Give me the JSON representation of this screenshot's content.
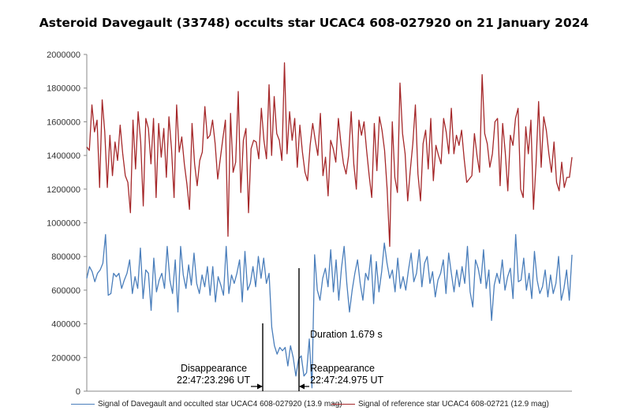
{
  "chart_data": {
    "type": "line",
    "title": "Asteroid Davegault (33748) occults star UCAC4 608-027920 on 21 January 2024",
    "xlabel": "",
    "ylabel": "",
    "ylim": [
      0,
      2000000
    ],
    "yticks": [
      "0",
      "200000",
      "400000",
      "600000",
      "800000",
      "1000000",
      "1200000",
      "1400000",
      "1600000",
      "1800000",
      "2000000"
    ],
    "grid": false,
    "legend_position": "bottom",
    "series": [
      {
        "name": "Signal of Davegault and occulted star UCAC4 608-027920 (13.9 mag)",
        "color": "#4a7ebb",
        "values": [
          670000,
          740000,
          710000,
          650000,
          700000,
          720000,
          760000,
          930000,
          570000,
          580000,
          700000,
          680000,
          700000,
          610000,
          660000,
          700000,
          780000,
          580000,
          680000,
          610000,
          850000,
          550000,
          720000,
          700000,
          480000,
          790000,
          590000,
          660000,
          700000,
          610000,
          860000,
          660000,
          580000,
          780000,
          470000,
          860000,
          690000,
          610000,
          750000,
          630000,
          820000,
          640000,
          580000,
          690000,
          620000,
          740000,
          570000,
          740000,
          530000,
          680000,
          630000,
          570000,
          860000,
          580000,
          690000,
          640000,
          700000,
          780000,
          530000,
          830000,
          600000,
          640000,
          740000,
          620000,
          800000,
          670000,
          790000,
          640000,
          700000,
          380000,
          270000,
          220000,
          260000,
          240000,
          260000,
          150000,
          270000,
          200000,
          90000,
          190000,
          210000,
          90000,
          110000,
          310000,
          20000,
          810000,
          600000,
          540000,
          670000,
          730000,
          620000,
          840000,
          590000,
          780000,
          540000,
          730000,
          860000,
          640000,
          470000,
          600000,
          700000,
          780000,
          640000,
          540000,
          700000,
          660000,
          810000,
          520000,
          770000,
          590000,
          710000,
          880000,
          760000,
          670000,
          720000,
          590000,
          790000,
          610000,
          680000,
          600000,
          720000,
          820000,
          650000,
          700000,
          840000,
          620000,
          760000,
          800000,
          640000,
          710000,
          560000,
          660000,
          700000,
          780000,
          580000,
          820000,
          700000,
          590000,
          720000,
          620000,
          740000,
          640000,
          860000,
          590000,
          500000,
          780000,
          730000,
          640000,
          840000,
          610000,
          720000,
          420000,
          630000,
          700000,
          640000,
          780000,
          600000,
          680000,
          730000,
          550000,
          930000,
          650000,
          660000,
          790000,
          600000,
          700000,
          550000,
          830000,
          660000,
          580000,
          620000,
          720000,
          560000,
          690000,
          580000,
          640000,
          800000,
          540000,
          610000,
          720000,
          540000,
          810000
        ]
      },
      {
        "name": "Signal of reference star UCAC4 608-02721 (12.9 mag)",
        "color": "#a5282a",
        "values": [
          1450000,
          1430000,
          1700000,
          1540000,
          1610000,
          1210000,
          1730000,
          1540000,
          1210000,
          1520000,
          1280000,
          1480000,
          1370000,
          1580000,
          1410000,
          1280000,
          1240000,
          1060000,
          1610000,
          1320000,
          1660000,
          1480000,
          1100000,
          1620000,
          1560000,
          1350000,
          1620000,
          1150000,
          1590000,
          1390000,
          1560000,
          1270000,
          1630000,
          1440000,
          1150000,
          1700000,
          1420000,
          1510000,
          1350000,
          1230000,
          1080000,
          1590000,
          1350000,
          1220000,
          1370000,
          1420000,
          1690000,
          1500000,
          1520000,
          1610000,
          1470000,
          1260000,
          1380000,
          1500000,
          1610000,
          920000,
          1650000,
          1300000,
          1360000,
          1780000,
          1180000,
          1490000,
          1560000,
          1060000,
          1440000,
          1490000,
          1480000,
          1380000,
          1680000,
          1490000,
          1380000,
          1820000,
          1400000,
          1750000,
          1530000,
          1490000,
          1370000,
          1950000,
          1410000,
          1660000,
          1490000,
          1620000,
          1330000,
          1580000,
          1420000,
          1300000,
          1250000,
          1460000,
          1590000,
          1490000,
          1400000,
          1650000,
          1280000,
          1390000,
          1160000,
          1490000,
          1440000,
          1360000,
          1620000,
          1470000,
          1350000,
          1290000,
          1400000,
          1660000,
          1350000,
          1200000,
          1610000,
          1520000,
          1600000,
          1430000,
          1280000,
          1150000,
          1590000,
          1310000,
          1630000,
          1550000,
          1430000,
          1200000,
          860000,
          1600000,
          1270000,
          1180000,
          1830000,
          1530000,
          1410000,
          1130000,
          1310000,
          1470000,
          1700000,
          1290000,
          1130000,
          1470000,
          1550000,
          1320000,
          1620000,
          1250000,
          1460000,
          1400000,
          1350000,
          1620000,
          1540000,
          1410000,
          1680000,
          1410000,
          1520000,
          1460000,
          1550000,
          1380000,
          1240000,
          1260000,
          1280000,
          1530000,
          1400000,
          1300000,
          1880000,
          1530000,
          1470000,
          1330000,
          1410000,
          1600000,
          1620000,
          1220000,
          1590000,
          1420000,
          1190000,
          1520000,
          1460000,
          1620000,
          1680000,
          1200000,
          1150000,
          1570000,
          1410000,
          1610000,
          1080000,
          1350000,
          1720000,
          1330000,
          1630000,
          1550000,
          1410000,
          1300000,
          1480000,
          1240000,
          1190000,
          1360000,
          1210000,
          1270000,
          1270000,
          1390000
        ]
      }
    ],
    "annotations": {
      "duration": "Duration 1.679 s",
      "disappearance_label": "Disappearance",
      "disappearance_time": "22:47:23.296 UT",
      "reappearance_label": "Reappearance",
      "reappearance_time": "22:47:24.975 UT"
    }
  }
}
